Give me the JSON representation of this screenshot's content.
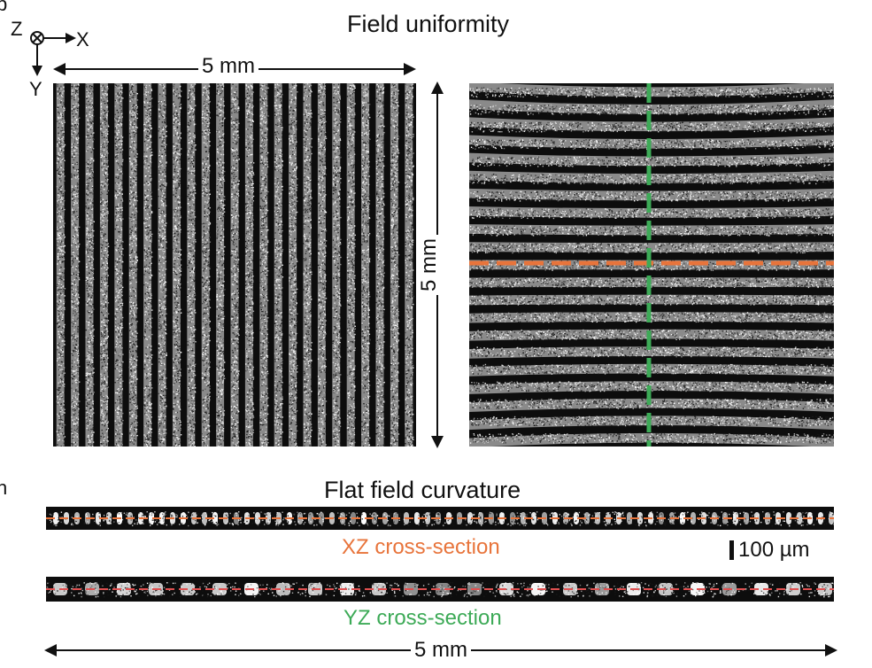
{
  "panel_a": {
    "title": "Field uniformity",
    "axes": {
      "z_label": "Z",
      "x_label": "X",
      "y_label": "Y"
    },
    "scale_horizontal": "5 mm",
    "scale_vertical": "5 mm",
    "left_image": {
      "stripe_orientation": "vertical",
      "stripe_count": 25
    },
    "right_image": {
      "stripe_orientation": "horizontal",
      "stripe_count": 21
    },
    "orange_line_color": "#E8743B",
    "green_line_color": "#3DAA57"
  },
  "panel_b": {
    "title": "Flat field curvature",
    "xz_label": "XZ cross-section",
    "yz_label": "YZ cross-section",
    "scale_bar_label": "100 µm",
    "scale_horizontal": "5 mm",
    "xz_color": "#E8743B",
    "yz_color": "#3DAA57"
  }
}
